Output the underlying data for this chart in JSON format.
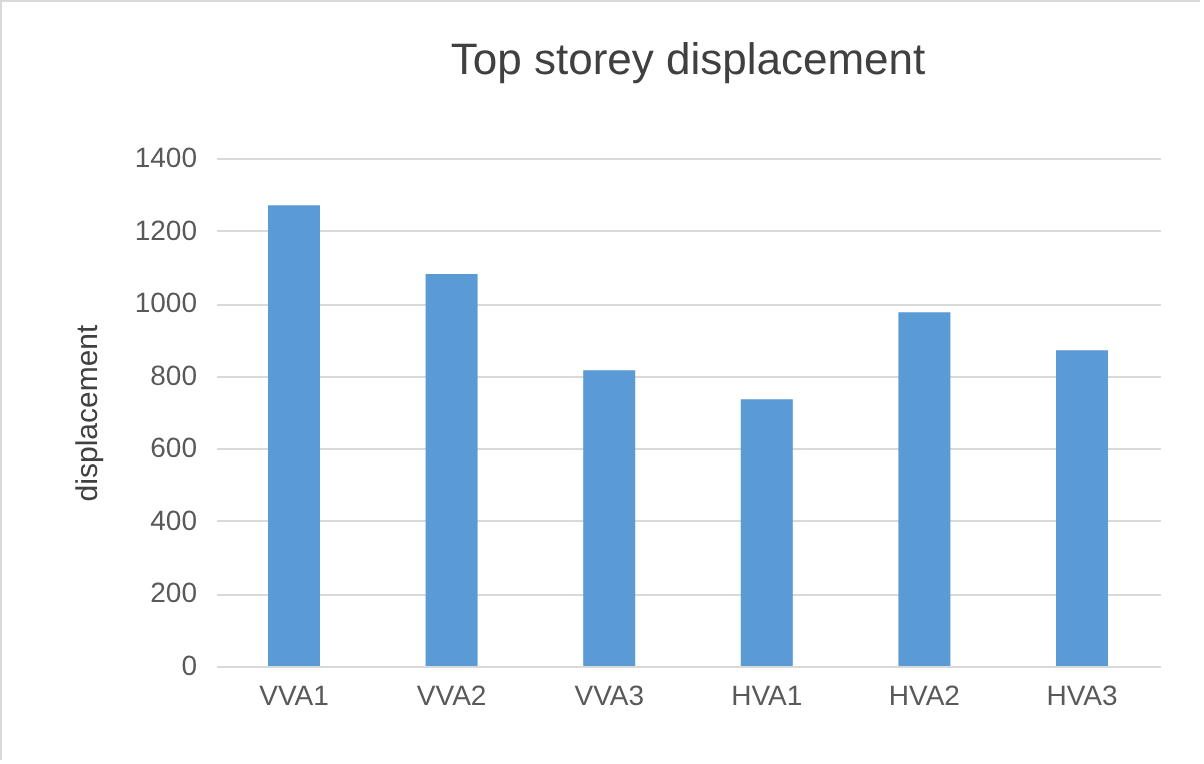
{
  "chart_data": {
    "type": "bar",
    "title": "Top storey displacement",
    "ylabel": "displacement",
    "categories": [
      "VVA1",
      "VVA2",
      "VVA3",
      "HVA1",
      "HVA2",
      "HVA3"
    ],
    "values": [
      1270,
      1080,
      815,
      735,
      975,
      870
    ],
    "color": "#5b9bd5",
    "ylim": [
      0,
      1400
    ],
    "yticks": [
      0,
      200,
      400,
      600,
      800,
      1000,
      1200,
      1400
    ],
    "grid": "y"
  }
}
